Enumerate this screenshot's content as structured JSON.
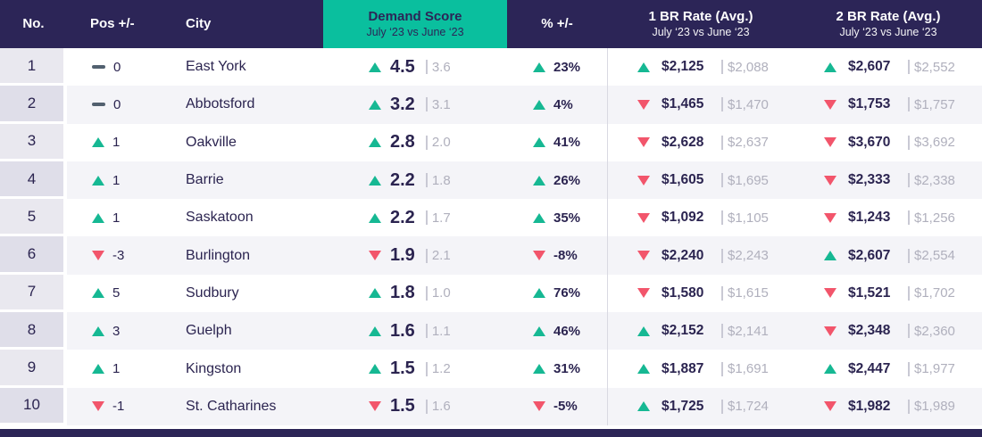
{
  "chart_data": {
    "type": "table",
    "columns": {
      "no": "No.",
      "pos": "Pos +/-",
      "city": "City",
      "demand": {
        "title": "Demand Score",
        "subtitle": "July ‘23 vs June ‘23"
      },
      "pct": "% +/-",
      "br1": {
        "title": "1 BR Rate (Avg.)",
        "subtitle": "July ‘23 vs June ‘23"
      },
      "br2": {
        "title": "2 BR Rate (Avg.)",
        "subtitle": "July ‘23 vs June ‘23"
      }
    },
    "rows": [
      {
        "no": "1",
        "pos": {
          "dir": "flat",
          "value": "0"
        },
        "city": "East York",
        "demand": {
          "dir": "up",
          "value": "4.5",
          "prev": "3.6"
        },
        "pct": {
          "dir": "up",
          "value": "23%"
        },
        "br1": {
          "dir": "up",
          "value": "$2,125",
          "prev": "$2,088"
        },
        "br2": {
          "dir": "up",
          "value": "$2,607",
          "prev": "$2,552"
        }
      },
      {
        "no": "2",
        "pos": {
          "dir": "flat",
          "value": "0"
        },
        "city": "Abbotsford",
        "demand": {
          "dir": "up",
          "value": "3.2",
          "prev": "3.1"
        },
        "pct": {
          "dir": "up",
          "value": "4%"
        },
        "br1": {
          "dir": "down",
          "value": "$1,465",
          "prev": "$1,470"
        },
        "br2": {
          "dir": "down",
          "value": "$1,753",
          "prev": "$1,757"
        }
      },
      {
        "no": "3",
        "pos": {
          "dir": "up",
          "value": "1"
        },
        "city": "Oakville",
        "demand": {
          "dir": "up",
          "value": "2.8",
          "prev": "2.0"
        },
        "pct": {
          "dir": "up",
          "value": "41%"
        },
        "br1": {
          "dir": "down",
          "value": "$2,628",
          "prev": "$2,637"
        },
        "br2": {
          "dir": "down",
          "value": "$3,670",
          "prev": "$3,692"
        }
      },
      {
        "no": "4",
        "pos": {
          "dir": "up",
          "value": "1"
        },
        "city": "Barrie",
        "demand": {
          "dir": "up",
          "value": "2.2",
          "prev": "1.8"
        },
        "pct": {
          "dir": "up",
          "value": "26%"
        },
        "br1": {
          "dir": "down",
          "value": "$1,605",
          "prev": "$1,695"
        },
        "br2": {
          "dir": "down",
          "value": "$2,333",
          "prev": "$2,338"
        }
      },
      {
        "no": "5",
        "pos": {
          "dir": "up",
          "value": "1"
        },
        "city": "Saskatoon",
        "demand": {
          "dir": "up",
          "value": "2.2",
          "prev": "1.7"
        },
        "pct": {
          "dir": "up",
          "value": "35%"
        },
        "br1": {
          "dir": "down",
          "value": "$1,092",
          "prev": "$1,105"
        },
        "br2": {
          "dir": "down",
          "value": "$1,243",
          "prev": "$1,256"
        }
      },
      {
        "no": "6",
        "pos": {
          "dir": "down",
          "value": "-3"
        },
        "city": "Burlington",
        "demand": {
          "dir": "down",
          "value": "1.9",
          "prev": "2.1"
        },
        "pct": {
          "dir": "down",
          "value": "-8%"
        },
        "br1": {
          "dir": "down",
          "value": "$2,240",
          "prev": "$2,243"
        },
        "br2": {
          "dir": "up",
          "value": "$2,607",
          "prev": "$2,554"
        }
      },
      {
        "no": "7",
        "pos": {
          "dir": "up",
          "value": "5"
        },
        "city": "Sudbury",
        "demand": {
          "dir": "up",
          "value": "1.8",
          "prev": "1.0"
        },
        "pct": {
          "dir": "up",
          "value": "76%"
        },
        "br1": {
          "dir": "down",
          "value": "$1,580",
          "prev": "$1,615"
        },
        "br2": {
          "dir": "down",
          "value": "$1,521",
          "prev": "$1,702"
        }
      },
      {
        "no": "8",
        "pos": {
          "dir": "up",
          "value": "3"
        },
        "city": "Guelph",
        "demand": {
          "dir": "up",
          "value": "1.6",
          "prev": "1.1"
        },
        "pct": {
          "dir": "up",
          "value": "46%"
        },
        "br1": {
          "dir": "up",
          "value": "$2,152",
          "prev": "$2,141"
        },
        "br2": {
          "dir": "down",
          "value": "$2,348",
          "prev": "$2,360"
        }
      },
      {
        "no": "9",
        "pos": {
          "dir": "up",
          "value": "1"
        },
        "city": "Kingston",
        "demand": {
          "dir": "up",
          "value": "1.5",
          "prev": "1.2"
        },
        "pct": {
          "dir": "up",
          "value": "31%"
        },
        "br1": {
          "dir": "up",
          "value": "$1,887",
          "prev": "$1,691"
        },
        "br2": {
          "dir": "up",
          "value": "$2,447",
          "prev": "$1,977"
        }
      },
      {
        "no": "10",
        "pos": {
          "dir": "down",
          "value": "-1"
        },
        "city": "St. Catharines",
        "demand": {
          "dir": "down",
          "value": "1.5",
          "prev": "1.6"
        },
        "pct": {
          "dir": "down",
          "value": "-5%"
        },
        "br1": {
          "dir": "up",
          "value": "$1,725",
          "prev": "$1,724"
        },
        "br2": {
          "dir": "down",
          "value": "$1,982",
          "prev": "$1,989"
        }
      }
    ],
    "layout": {
      "grid": "off",
      "legend": "none"
    }
  },
  "colors": {
    "header_navy": "#2c2557",
    "demand_teal": "#0abf9e",
    "up_green": "#16b893",
    "down_red": "#f2556b",
    "neutral_dash": "#52606f",
    "prev_value_gray": "#b0b0bd",
    "row_alt": "#f4f4f8",
    "rank_col_odd": "#e9e8ef",
    "rank_col_even": "#dfdee9"
  }
}
